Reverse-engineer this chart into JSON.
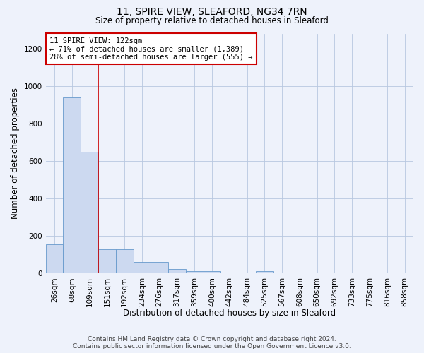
{
  "title1": "11, SPIRE VIEW, SLEAFORD, NG34 7RN",
  "title2": "Size of property relative to detached houses in Sleaford",
  "xlabel": "Distribution of detached houses by size in Sleaford",
  "ylabel": "Number of detached properties",
  "bin_labels": [
    "26sqm",
    "68sqm",
    "109sqm",
    "151sqm",
    "192sqm",
    "234sqm",
    "276sqm",
    "317sqm",
    "359sqm",
    "400sqm",
    "442sqm",
    "484sqm",
    "525sqm",
    "567sqm",
    "608sqm",
    "650sqm",
    "692sqm",
    "733sqm",
    "775sqm",
    "816sqm",
    "858sqm"
  ],
  "bar_heights": [
    155,
    940,
    650,
    130,
    130,
    60,
    60,
    25,
    12,
    12,
    0,
    0,
    12,
    0,
    0,
    0,
    0,
    0,
    0,
    0,
    0
  ],
  "bar_color": "#ccd9f0",
  "bar_edge_color": "#6699cc",
  "annotation_text_line1": "11 SPIRE VIEW: 122sqm",
  "annotation_text_line2": "← 71% of detached houses are smaller (1,389)",
  "annotation_text_line3": "28% of semi-detached houses are larger (555) →",
  "red_line_color": "#cc0000",
  "annotation_box_color": "#ffffff",
  "annotation_box_edge": "#cc0000",
  "footer_line1": "Contains HM Land Registry data © Crown copyright and database right 2024.",
  "footer_line2": "Contains public sector information licensed under the Open Government Licence v3.0.",
  "ylim": [
    0,
    1280
  ],
  "yticks": [
    0,
    200,
    400,
    600,
    800,
    1000,
    1200
  ],
  "bg_color": "#eef2fb",
  "title1_fontsize": 10,
  "title2_fontsize": 8.5,
  "ylabel_fontsize": 8.5,
  "xlabel_fontsize": 8.5,
  "tick_fontsize": 7.5,
  "annotation_fontsize": 7.5,
  "footer_fontsize": 6.5
}
